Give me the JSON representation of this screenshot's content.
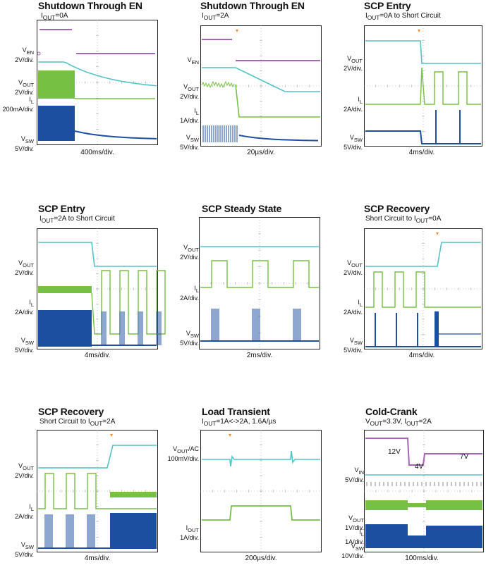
{
  "colors": {
    "cyan": "#52c3c9",
    "magenta": "#a566b3",
    "green": "#76c043",
    "blue": "#1d4fa0",
    "marker": "#f08a2c",
    "grid": "#999999"
  },
  "chart_data": [
    {
      "type": "line",
      "title": "Shutdown Through EN",
      "subtitle": {
        "pre": "I",
        "sub": "OUT",
        "post": "=0A"
      },
      "xlabel": "400ms/div.",
      "channels": [
        {
          "name": "EN",
          "label_main": "V",
          "label_sub": "EN",
          "label_scale": "2V/div.",
          "color": "magenta"
        },
        {
          "name": "OUT",
          "label_main": "V",
          "label_sub": "OUT",
          "label_scale": "2V/div.",
          "color": "cyan"
        },
        {
          "name": "L",
          "label_main": "I",
          "label_sub": "L",
          "label_scale": "200mA/div.",
          "color": "green"
        },
        {
          "name": "SW",
          "label_main": "V",
          "label_sub": "SW",
          "label_scale": "5V/div.",
          "color": "blue"
        }
      ]
    },
    {
      "type": "line",
      "title": "Shutdown Through EN",
      "subtitle": {
        "pre": "I",
        "sub": "OUT",
        "post": "=2A"
      },
      "xlabel": "20µs/div.",
      "channels": [
        {
          "name": "EN",
          "label_main": "V",
          "label_sub": "EN",
          "label_scale": "2V/div.",
          "color": "magenta"
        },
        {
          "name": "OUT",
          "label_main": "V",
          "label_sub": "OUT",
          "label_scale": "2V/div.",
          "color": "cyan"
        },
        {
          "name": "L",
          "label_main": "I",
          "label_sub": "L",
          "label_scale": "1A/div.",
          "color": "green"
        },
        {
          "name": "SW",
          "label_main": "V",
          "label_sub": "SW",
          "label_scale": "5V/div.",
          "color": "blue"
        }
      ]
    },
    {
      "type": "line",
      "title": "SCP Entry",
      "subtitle": {
        "pre": "I",
        "sub": "OUT",
        "post": "=0A to Short Circuit"
      },
      "xlabel": "4ms/div.",
      "channels": [
        {
          "name": "OUT",
          "label_main": "V",
          "label_sub": "OUT",
          "label_scale": "2V/div.",
          "color": "cyan"
        },
        {
          "name": "L",
          "label_main": "I",
          "label_sub": "L",
          "label_scale": "2A/div.",
          "color": "green"
        },
        {
          "name": "SW",
          "label_main": "V",
          "label_sub": "SW",
          "label_scale": "5V/div.",
          "color": "blue"
        }
      ]
    },
    {
      "type": "line",
      "title": "SCP Entry",
      "subtitle": {
        "pre": "I",
        "sub": "OUT",
        "post": "=2A to Short Circuit"
      },
      "xlabel": "4ms/div.",
      "channels": [
        {
          "name": "OUT",
          "label_main": "V",
          "label_sub": "OUT",
          "label_scale": "2V/div.",
          "color": "cyan"
        },
        {
          "name": "L",
          "label_main": "I",
          "label_sub": "L",
          "label_scale": "2A/div.",
          "color": "green"
        },
        {
          "name": "SW",
          "label_main": "V",
          "label_sub": "SW",
          "label_scale": "5V/div.",
          "color": "blue"
        }
      ]
    },
    {
      "type": "line",
      "title": "SCP Steady State",
      "subtitle": null,
      "xlabel": "2ms/div.",
      "channels": [
        {
          "name": "OUT",
          "label_main": "V",
          "label_sub": "OUT",
          "label_scale": "2V/div.",
          "color": "cyan"
        },
        {
          "name": "L",
          "label_main": "I",
          "label_sub": "L",
          "label_scale": "2A/div.",
          "color": "green"
        },
        {
          "name": "SW",
          "label_main": "V",
          "label_sub": "SW",
          "label_scale": "5V/div.",
          "color": "blue"
        }
      ]
    },
    {
      "type": "line",
      "title": "SCP Recovery",
      "subtitle": {
        "pre": "Short Circuit to I",
        "sub": "OUT",
        "post": "=0A"
      },
      "xlabel": "4ms/div.",
      "channels": [
        {
          "name": "OUT",
          "label_main": "V",
          "label_sub": "OUT",
          "label_scale": "2V/div.",
          "color": "cyan"
        },
        {
          "name": "L",
          "label_main": "I",
          "label_sub": "L",
          "label_scale": "2A/div.",
          "color": "green"
        },
        {
          "name": "SW",
          "label_main": "V",
          "label_sub": "SW",
          "label_scale": "5V/div.",
          "color": "blue"
        }
      ]
    },
    {
      "type": "line",
      "title": "SCP Recovery",
      "subtitle": {
        "pre": "Short Circuit to I",
        "sub": "OUT",
        "post": "=2A"
      },
      "xlabel": "4ms/div.",
      "channels": [
        {
          "name": "OUT",
          "label_main": "V",
          "label_sub": "OUT",
          "label_scale": "2V/div.",
          "color": "cyan"
        },
        {
          "name": "L",
          "label_main": "I",
          "label_sub": "L",
          "label_scale": "2A/div.",
          "color": "green"
        },
        {
          "name": "SW",
          "label_main": "V",
          "label_sub": "SW",
          "label_scale": "5V/div.",
          "color": "blue"
        }
      ]
    },
    {
      "type": "line",
      "title": "Load Transient",
      "subtitle": {
        "pre": "I",
        "sub": "OUT",
        "post": "=1A<->2A, 1.6A/µs"
      },
      "xlabel": "200µs/div.",
      "channels": [
        {
          "name": "OUT",
          "label_main": "V",
          "label_sub": "OUT",
          "label_post": "/AC",
          "label_scale": "100mV/div.",
          "color": "cyan"
        },
        {
          "name": "OUTI",
          "label_main": "I",
          "label_sub": "OUT",
          "label_scale": "1A/div.",
          "color": "green"
        }
      ]
    },
    {
      "type": "line",
      "title": "Cold-Crank",
      "subtitle": {
        "pre": "V",
        "sub": "OUT",
        "post": "=3.3V, I",
        "sub2": "OUT",
        "post2": "=2A"
      },
      "xlabel": "100ms/div.",
      "annotations": [
        "12V",
        "4V",
        "7V"
      ],
      "channels": [
        {
          "name": "IN",
          "label_main": "V",
          "label_sub": "IN",
          "label_scale": "5V/div.",
          "color": "magenta"
        },
        {
          "name": "OUT",
          "label_main": "V",
          "label_sub": "OUT",
          "label_scale": "1V/div.",
          "color": "cyan"
        },
        {
          "name": "L",
          "label_main": "I",
          "label_sub": "L",
          "label_scale": "1A/div.",
          "color": "green"
        },
        {
          "name": "SW",
          "label_main": "V",
          "label_sub": "SW",
          "label_scale": "10V/div.",
          "color": "blue"
        }
      ]
    }
  ]
}
